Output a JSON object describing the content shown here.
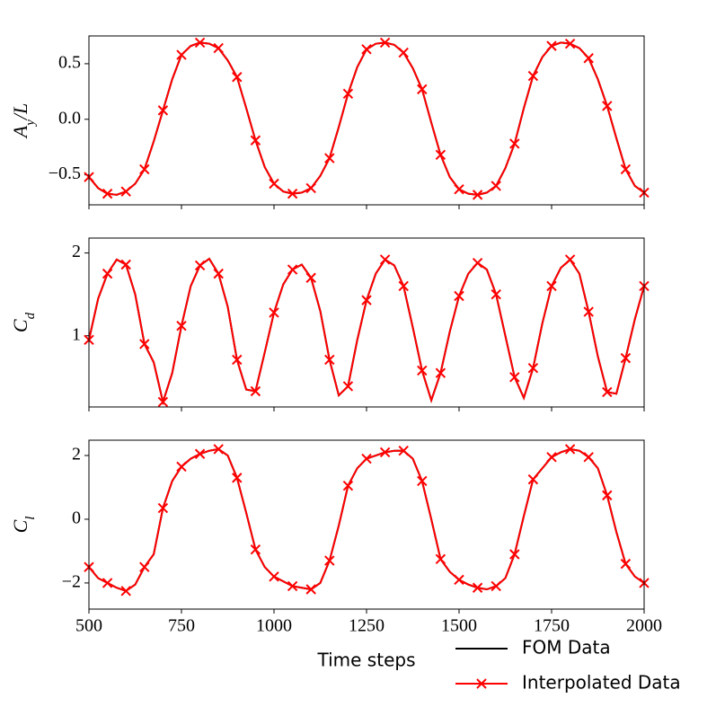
{
  "chart_data": [
    {
      "type": "line",
      "ylabel": "Ay/L",
      "x": [
        500,
        525,
        550,
        575,
        600,
        625,
        650,
        675,
        700,
        725,
        750,
        775,
        800,
        825,
        850,
        875,
        900,
        925,
        950,
        975,
        1000,
        1025,
        1050,
        1075,
        1100,
        1125,
        1150,
        1175,
        1200,
        1225,
        1250,
        1275,
        1300,
        1325,
        1350,
        1375,
        1400,
        1425,
        1450,
        1475,
        1500,
        1525,
        1550,
        1575,
        1600,
        1625,
        1650,
        1675,
        1700,
        1725,
        1750,
        1775,
        1800,
        1825,
        1850,
        1875,
        1900,
        1925,
        1950,
        1975,
        2000
      ],
      "xlim": [
        500,
        2000
      ],
      "xticks": [
        500,
        750,
        1000,
        1250,
        1500,
        1750,
        2000
      ],
      "ylim": [
        -0.77,
        0.75
      ],
      "yticks": [
        {
          "value": -0.5,
          "label": "−0.5"
        },
        {
          "value": 0,
          "label": "0.0"
        },
        0.5
      ],
      "series": [
        {
          "name": "FOM Data",
          "color": "#000000",
          "values": [
            -0.52,
            -0.62,
            -0.67,
            -0.68,
            -0.65,
            -0.58,
            -0.45,
            -0.2,
            0.08,
            0.36,
            0.58,
            0.66,
            0.69,
            0.68,
            0.64,
            0.53,
            0.38,
            0.1,
            -0.19,
            -0.43,
            -0.58,
            -0.65,
            -0.67,
            -0.66,
            -0.62,
            -0.51,
            -0.35,
            -0.07,
            0.23,
            0.47,
            0.63,
            0.68,
            0.69,
            0.67,
            0.6,
            0.46,
            0.27,
            -0.03,
            -0.32,
            -0.52,
            -0.63,
            -0.67,
            -0.68,
            -0.66,
            -0.6,
            -0.44,
            -0.22,
            0.1,
            0.39,
            0.56,
            0.66,
            0.69,
            0.68,
            0.64,
            0.55,
            0.36,
            0.12,
            -0.17,
            -0.45,
            -0.6,
            -0.66
          ]
        },
        {
          "name": "Interpolated Data",
          "color": "#ff0000",
          "marker": "x",
          "markevery": 2,
          "values": [
            -0.52,
            -0.62,
            -0.67,
            -0.68,
            -0.65,
            -0.58,
            -0.45,
            -0.2,
            0.08,
            0.36,
            0.58,
            0.66,
            0.69,
            0.68,
            0.64,
            0.53,
            0.38,
            0.1,
            -0.19,
            -0.43,
            -0.58,
            -0.65,
            -0.67,
            -0.66,
            -0.62,
            -0.51,
            -0.35,
            -0.07,
            0.23,
            0.47,
            0.63,
            0.68,
            0.69,
            0.67,
            0.6,
            0.46,
            0.27,
            -0.03,
            -0.32,
            -0.52,
            -0.63,
            -0.67,
            -0.68,
            -0.66,
            -0.6,
            -0.44,
            -0.22,
            0.1,
            0.39,
            0.56,
            0.66,
            0.69,
            0.68,
            0.64,
            0.55,
            0.36,
            0.12,
            -0.17,
            -0.45,
            -0.6,
            -0.66
          ]
        }
      ]
    },
    {
      "type": "line",
      "ylabel": "Cd",
      "x": [
        500,
        525,
        550,
        575,
        600,
        625,
        650,
        675,
        700,
        725,
        750,
        775,
        800,
        825,
        850,
        875,
        900,
        925,
        950,
        975,
        1000,
        1025,
        1050,
        1075,
        1100,
        1125,
        1150,
        1175,
        1200,
        1225,
        1250,
        1275,
        1300,
        1325,
        1350,
        1375,
        1400,
        1425,
        1450,
        1475,
        1500,
        1525,
        1550,
        1575,
        1600,
        1625,
        1650,
        1675,
        1700,
        1725,
        1750,
        1775,
        1800,
        1825,
        1850,
        1875,
        1900,
        1925,
        1950,
        1975,
        2000
      ],
      "xlim": [
        500,
        2000
      ],
      "xticks": [
        500,
        750,
        1000,
        1250,
        1500,
        1750,
        2000
      ],
      "ylim": [
        0.14,
        2.18
      ],
      "yticks": [
        1,
        2
      ],
      "series": [
        {
          "name": "FOM Data",
          "color": "#000000",
          "values": [
            0.95,
            1.45,
            1.75,
            1.92,
            1.86,
            1.5,
            0.9,
            0.68,
            0.2,
            0.55,
            1.12,
            1.6,
            1.85,
            1.93,
            1.75,
            1.35,
            0.71,
            0.35,
            0.33,
            0.8,
            1.28,
            1.62,
            1.8,
            1.86,
            1.7,
            1.3,
            0.71,
            0.28,
            0.39,
            0.95,
            1.43,
            1.75,
            1.92,
            1.85,
            1.6,
            1.1,
            0.58,
            0.22,
            0.55,
            1.05,
            1.48,
            1.75,
            1.88,
            1.8,
            1.5,
            1.0,
            0.5,
            0.25,
            0.61,
            1.15,
            1.6,
            1.82,
            1.92,
            1.75,
            1.29,
            0.75,
            0.32,
            0.3,
            0.73,
            1.2,
            1.6
          ]
        },
        {
          "name": "Interpolated Data",
          "color": "#ff0000",
          "marker": "x",
          "markevery": 2,
          "values": [
            0.95,
            1.45,
            1.75,
            1.92,
            1.86,
            1.5,
            0.9,
            0.68,
            0.2,
            0.55,
            1.12,
            1.6,
            1.85,
            1.93,
            1.75,
            1.35,
            0.71,
            0.35,
            0.33,
            0.8,
            1.28,
            1.62,
            1.8,
            1.86,
            1.7,
            1.3,
            0.71,
            0.28,
            0.39,
            0.95,
            1.43,
            1.75,
            1.92,
            1.85,
            1.6,
            1.1,
            0.58,
            0.22,
            0.55,
            1.05,
            1.48,
            1.75,
            1.88,
            1.8,
            1.5,
            1.0,
            0.5,
            0.25,
            0.61,
            1.15,
            1.6,
            1.82,
            1.92,
            1.75,
            1.29,
            0.75,
            0.32,
            0.3,
            0.73,
            1.2,
            1.6
          ]
        }
      ]
    },
    {
      "type": "line",
      "ylabel": "Cl",
      "xlabel": "Time steps",
      "legend": "below right",
      "x": [
        500,
        525,
        550,
        575,
        600,
        625,
        650,
        675,
        700,
        725,
        750,
        775,
        800,
        825,
        850,
        875,
        900,
        925,
        950,
        975,
        1000,
        1025,
        1050,
        1075,
        1100,
        1125,
        1150,
        1175,
        1200,
        1225,
        1250,
        1275,
        1300,
        1325,
        1350,
        1375,
        1400,
        1425,
        1450,
        1475,
        1500,
        1525,
        1550,
        1575,
        1600,
        1625,
        1650,
        1675,
        1700,
        1725,
        1750,
        1775,
        1800,
        1825,
        1850,
        1875,
        1900,
        1925,
        1950,
        1975,
        2000
      ],
      "xlim": [
        500,
        2000
      ],
      "xticks": [
        500,
        750,
        1000,
        1250,
        1500,
        1750,
        2000
      ],
      "ylim": [
        -2.82,
        2.48
      ],
      "yticks": [
        {
          "value": -2,
          "label": "−2"
        },
        0,
        2
      ],
      "series": [
        {
          "name": "FOM Data",
          "color": "#000000",
          "values": [
            -1.5,
            -1.85,
            -2.0,
            -2.15,
            -2.25,
            -2.05,
            -1.5,
            -1.1,
            0.35,
            1.2,
            1.65,
            1.9,
            2.05,
            2.15,
            2.2,
            2.0,
            1.3,
            0.2,
            -0.95,
            -1.5,
            -1.8,
            -1.95,
            -2.1,
            -2.15,
            -2.2,
            -2.0,
            -1.3,
            -0.2,
            1.05,
            1.6,
            1.9,
            2.0,
            2.1,
            2.15,
            2.15,
            1.9,
            1.2,
            0.0,
            -1.25,
            -1.65,
            -1.9,
            -2.05,
            -2.15,
            -2.2,
            -2.1,
            -1.85,
            -1.1,
            0.1,
            1.25,
            1.6,
            1.95,
            2.1,
            2.2,
            2.15,
            1.95,
            1.6,
            0.75,
            -0.4,
            -1.4,
            -1.8,
            -2.0
          ]
        },
        {
          "name": "Interpolated Data",
          "color": "#ff0000",
          "marker": "x",
          "markevery": 2,
          "values": [
            -1.5,
            -1.85,
            -2.0,
            -2.15,
            -2.25,
            -2.05,
            -1.5,
            -1.1,
            0.35,
            1.2,
            1.65,
            1.9,
            2.05,
            2.15,
            2.2,
            2.0,
            1.3,
            0.2,
            -0.95,
            -1.5,
            -1.8,
            -1.95,
            -2.1,
            -2.15,
            -2.2,
            -2.0,
            -1.3,
            -0.2,
            1.05,
            1.6,
            1.9,
            2.0,
            2.1,
            2.15,
            2.15,
            1.9,
            1.2,
            0.0,
            -1.25,
            -1.65,
            -1.9,
            -2.05,
            -2.15,
            -2.2,
            -2.1,
            -1.85,
            -1.1,
            0.1,
            1.25,
            1.6,
            1.95,
            2.1,
            2.2,
            2.15,
            1.95,
            1.6,
            0.75,
            -0.4,
            -1.4,
            -1.8,
            -2.0
          ]
        }
      ]
    }
  ]
}
